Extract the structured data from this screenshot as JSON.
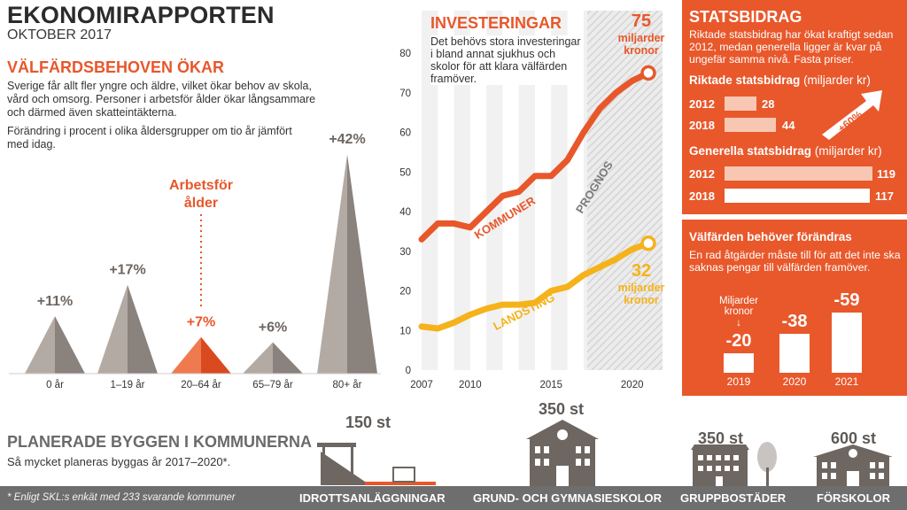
{
  "header": {
    "title": "EKONOMIRAPPORTEN",
    "subtitle": "OKTOBER 2017"
  },
  "welfare": {
    "heading": "VÄLFÄRDSBEHOVEN ÖKAR",
    "body": "Sverige får allt fler yngre och äldre, vilket ökar behov av skola, vård och omsorg. Personer i arbetsför ålder ökar långsammare och därmed även skatteintäkterna.",
    "note": "Förändring i procent i olika åldersgrupper om tio år jämfört med idag.",
    "highlight_label": "Arbetsför ålder"
  },
  "investments": {
    "heading": "INVESTERINGAR",
    "body": "Det behövs stora investeringar i bland annat sjukhus och skolor för att klara välfärden framöver.",
    "forecast_label": "PROGNOS",
    "kommuner_end_value": "75",
    "kommuner_end_unit": "miljarder kronor",
    "landsting_end_value": "32",
    "landsting_end_unit": "miljarder kronor"
  },
  "chart_data": [
    {
      "type": "bar",
      "title": "",
      "categories": [
        "0 år",
        "1–19 år",
        "20–64 år",
        "65–79 år",
        "80+ år"
      ],
      "values": [
        11,
        17,
        7,
        6,
        42
      ],
      "value_labels": [
        "+11%",
        "+17%",
        "+7%",
        "+6%",
        "+42%"
      ],
      "highlight_index": 2,
      "colors": {
        "normal": "#8a827d",
        "highlight": "#e8572a"
      }
    },
    {
      "type": "line",
      "x": [
        2007,
        2008,
        2009,
        2010,
        2011,
        2012,
        2013,
        2014,
        2015,
        2016,
        2017,
        2018,
        2019,
        2020,
        2021
      ],
      "series": [
        {
          "name": "KOMMUNER",
          "values": [
            33,
            37,
            37,
            36,
            40,
            44,
            45,
            49,
            49,
            53,
            60,
            66,
            70,
            73,
            75
          ],
          "color": "#e8572a"
        },
        {
          "name": "LANDSTING",
          "values": [
            11,
            10.5,
            12,
            14,
            15.5,
            16.5,
            16.5,
            17,
            20,
            21,
            24,
            26,
            28,
            30.5,
            32
          ],
          "color": "#f5b21b"
        }
      ],
      "xticks": [
        2007,
        2010,
        2015,
        2020
      ],
      "yticks": [
        0,
        10,
        20,
        30,
        40,
        50,
        60,
        70,
        80
      ],
      "ylim": [
        0,
        80
      ],
      "forecast_from": 2017
    }
  ],
  "statsbidrag": {
    "title": "STATSBIDRAG",
    "text": "Riktade statsbidrag har ökat kraftigt sedan 2012, medan generella ligger är kvar på ungefär samma nivå. Fasta priser.",
    "targeted_heading": "Riktade statsbidrag",
    "unit": "(miljarder kr)",
    "targeted": [
      {
        "year": "2012",
        "value": 28,
        "label": "28"
      },
      {
        "year": "2018",
        "value": 44,
        "label": "44"
      }
    ],
    "increase": "+60%",
    "general_heading": "Generella statsbidrag",
    "general_unit": "(miljarder kr)",
    "general": [
      {
        "year": "2012",
        "value": 119,
        "label": "119"
      },
      {
        "year": "2018",
        "value": 117,
        "label": "117"
      }
    ]
  },
  "change": {
    "heading": "Välfärden behöver förändras",
    "text": "En rad åtgärder måste till för att det inte ska saknas pengar till välfärden framöver.",
    "unit_label": "Miljarder kronor",
    "arrow": "↓",
    "bars": [
      {
        "year": "2019",
        "value": -20,
        "label": "-20"
      },
      {
        "year": "2020",
        "value": -38,
        "label": "-38"
      },
      {
        "year": "2021",
        "value": -59,
        "label": "-59"
      }
    ]
  },
  "planned": {
    "heading": "PLANERADE BYGGEN I KOMMUNERNA",
    "body": "Så mycket planeras byggas år 2017–2020*.",
    "footnote": "* Enligt SKL:s enkät med 233 svarande kommuner",
    "items": [
      {
        "count": "150 st",
        "label": "IDROTTSANLÄGGNINGAR",
        "icon": "stadium-icon"
      },
      {
        "count": "350 st",
        "label": "GRUND- OCH GYMNASIESKOLOR",
        "icon": "school-icon"
      },
      {
        "count": "350 st",
        "label": "GRUPPBOSTÄDER",
        "icon": "group-housing-icon"
      },
      {
        "count": "600 st",
        "label": "FÖRSKOLOR",
        "icon": "preschool-icon"
      }
    ]
  }
}
